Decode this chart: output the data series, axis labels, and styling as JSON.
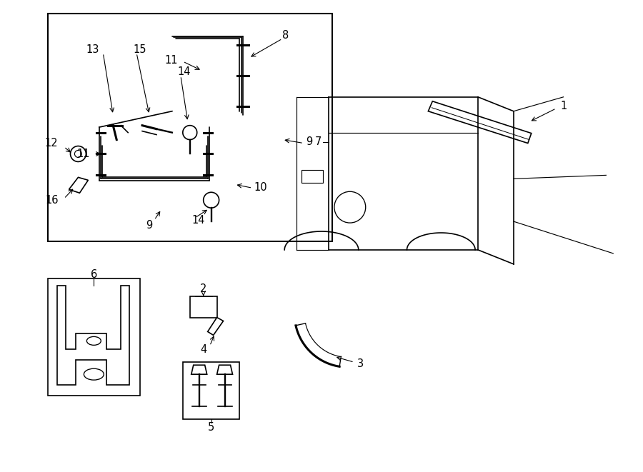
{
  "bg_color": "#ffffff",
  "line_color": "#000000",
  "title": "",
  "fig_width": 9.0,
  "fig_height": 6.61,
  "dpi": 100
}
